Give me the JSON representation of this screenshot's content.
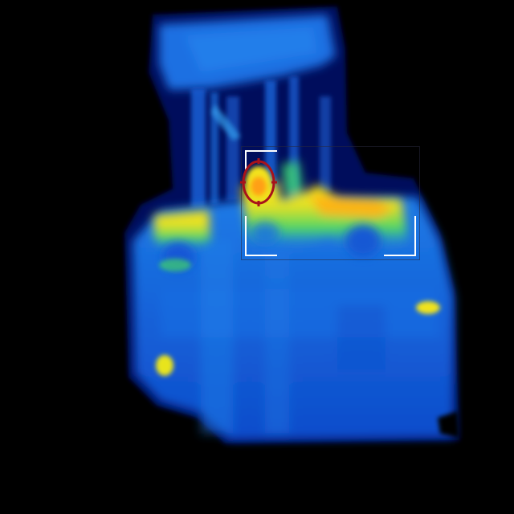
{
  "view": {
    "mode": "thermal",
    "palette": [
      "#00074f",
      "#0a3fd0",
      "#1a7ae8",
      "#17c0c0",
      "#46d96a",
      "#f3e81b",
      "#ff9f10"
    ],
    "background": "#000000"
  },
  "overlay": {
    "roi_icon": "bracket-frame",
    "roi_color": "#ffffff",
    "reticle_icon": "crosshair-ellipse",
    "reticle_color": "#b0141a"
  }
}
